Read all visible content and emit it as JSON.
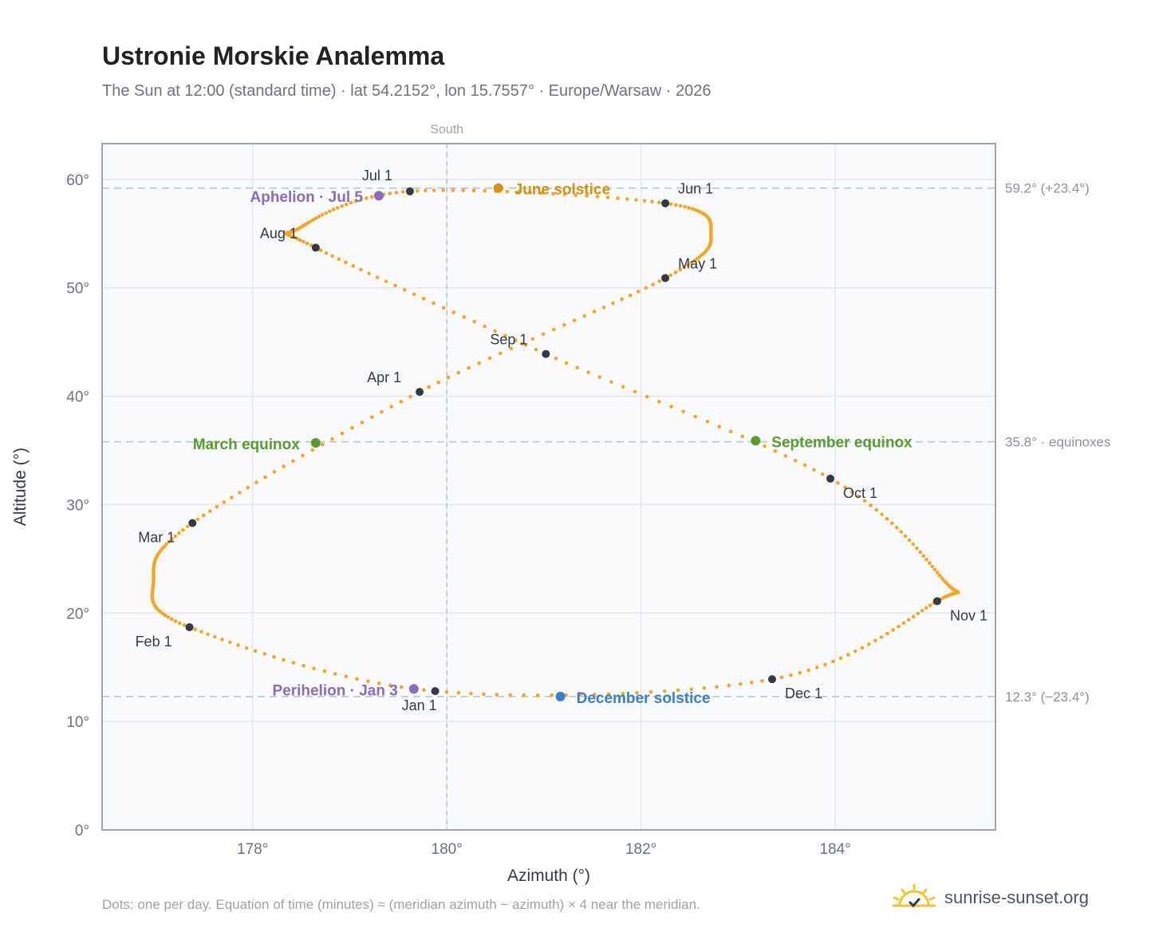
{
  "title": "Ustronie Morskie Analemma",
  "subtitle": "The Sun at 12:00 (standard time) · lat 54.2152°, lon 15.7557° · Europe/Warsaw · 2026",
  "footnote": "Dots: one per day. Equation of time (minutes) ≈ (meridian azimuth − azimuth) × 4 near the meridian.",
  "brand": {
    "text": "sunrise-sunset.org",
    "icon": "sun-logo-icon",
    "icon_color": "#f4c430"
  },
  "colors": {
    "path": "#f5a623",
    "month_dot": "#333a44",
    "june": "#d4920b",
    "december": "#3a7fc7",
    "equinox": "#5a9a2e",
    "apsis": "#8e6bb8",
    "grid": "#e3e7ec",
    "reference": "#b8c2cc",
    "plot_bg": "#f8fafc",
    "frame": "#9aa5b1"
  },
  "chart_data": {
    "type": "scatter",
    "title": "Ustronie Morskie Analemma",
    "xlabel": "Azimuth (°)",
    "ylabel": "Altitude (°)",
    "xlim": [
      176.45,
      185.65
    ],
    "ylim": [
      0,
      63.3
    ],
    "xticks": [
      178,
      180,
      182,
      184
    ],
    "xtick_labels": [
      "178°",
      "180°",
      "182°",
      "184°"
    ],
    "yticks": [
      0,
      10,
      20,
      30,
      40,
      50,
      60
    ],
    "ytick_labels": [
      "0°",
      "10°",
      "20°",
      "30°",
      "40°",
      "50°",
      "60°"
    ],
    "grid": true,
    "meridian": {
      "x": 180,
      "label": "South"
    },
    "reference_lines": [
      {
        "y": 59.2,
        "label": "59.2° (+23.4°)"
      },
      {
        "y": 35.8,
        "label": "35.8° · equinoxes"
      },
      {
        "y": 12.3,
        "label": "12.3° (−23.4°)"
      }
    ],
    "month_points": [
      {
        "label": "Jan 1",
        "x": 179.88,
        "y": 12.8
      },
      {
        "label": "Feb 1",
        "x": 177.35,
        "y": 18.7
      },
      {
        "label": "Mar 1",
        "x": 177.38,
        "y": 28.3
      },
      {
        "label": "Apr 1",
        "x": 179.72,
        "y": 40.4
      },
      {
        "label": "May 1",
        "x": 182.25,
        "y": 50.9
      },
      {
        "label": "Jun 1",
        "x": 182.25,
        "y": 57.8
      },
      {
        "label": "Jul 1",
        "x": 179.62,
        "y": 58.9
      },
      {
        "label": "Aug 1",
        "x": 178.65,
        "y": 53.7
      },
      {
        "label": "Sep 1",
        "x": 181.02,
        "y": 43.9
      },
      {
        "label": "Oct 1",
        "x": 183.95,
        "y": 32.4
      },
      {
        "label": "Nov 1",
        "x": 185.05,
        "y": 21.1
      },
      {
        "label": "Dec 1",
        "x": 183.35,
        "y": 13.9
      }
    ],
    "events": [
      {
        "label": "June solstice",
        "x": 180.53,
        "y": 59.2,
        "color_key": "june"
      },
      {
        "label": "December solstice",
        "x": 181.17,
        "y": 12.3,
        "color_key": "december"
      },
      {
        "label": "March equinox",
        "x": 178.65,
        "y": 35.7,
        "color_key": "equinox"
      },
      {
        "label": "September equinox",
        "x": 183.18,
        "y": 35.9,
        "color_key": "equinox"
      },
      {
        "label": "Aphelion · Jul 5",
        "x": 179.3,
        "y": 58.5,
        "color_key": "apsis"
      },
      {
        "label": "Perihelion · Jan 3",
        "x": 179.66,
        "y": 13.0,
        "color_key": "apsis"
      }
    ]
  }
}
